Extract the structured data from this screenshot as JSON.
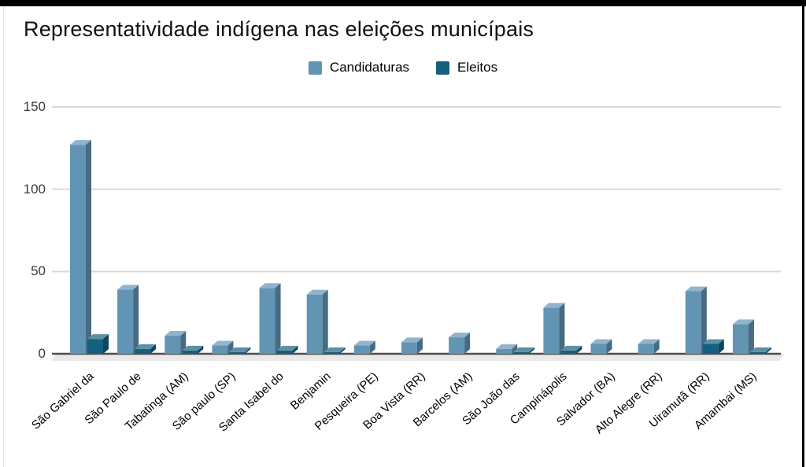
{
  "chart_data": {
    "type": "bar",
    "effect": "3d",
    "title": "Representatividade indígena nas eleições municípais",
    "legend_position": "top",
    "grid": true,
    "y_ticks": [
      0,
      50,
      100,
      150
    ],
    "ylim": [
      0,
      150
    ],
    "categories": [
      "São Gabriel da",
      "São Paulo de",
      "Tabatinga (AM)",
      "São paulo (SP)",
      "Santa Isabel do",
      "Benjamin",
      "Pesqueira (PE)",
      "Boa Vista (RR)",
      "Barcelos (AM)",
      "São João das",
      "Campinápolis",
      "Salvador (BA)",
      "Alto Alegre (RR)",
      "Uiramutã (RR)",
      "Amambai (MS)"
    ],
    "series": [
      {
        "name": "Candidaturas",
        "color": "#6294b4",
        "values": [
          127,
          39,
          11,
          5,
          40,
          36,
          5,
          7,
          10,
          3,
          28,
          6,
          6,
          38,
          18
        ]
      },
      {
        "name": "Eleitos",
        "color": "#15607e",
        "values": [
          9,
          3,
          2,
          1,
          2,
          1,
          0,
          0,
          0,
          1,
          2,
          0,
          0,
          6,
          1
        ]
      }
    ],
    "colors": {
      "gridline": "#d9d9d9",
      "axis_line": "#4d4d4d",
      "floor": "#e9e9e9",
      "title_text": "#111111",
      "tick_text": "#3c3c3c"
    }
  }
}
